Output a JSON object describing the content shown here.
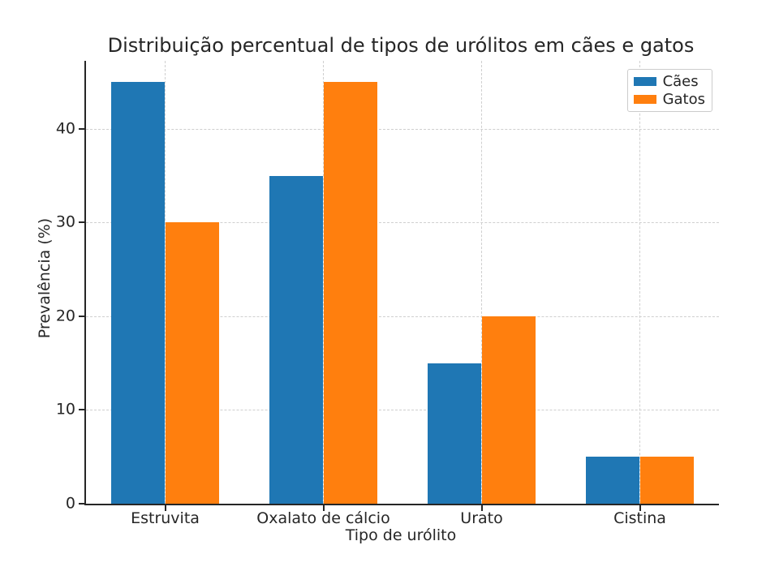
{
  "chart_data": {
    "type": "bar",
    "title": "Distribuição percentual de tipos de urólitos em cães e gatos",
    "xlabel": "Tipo de urólito",
    "ylabel": "Prevalência (%)",
    "categories": [
      "Estruvita",
      "Oxalato de cálcio",
      "Urato",
      "Cistina"
    ],
    "series": [
      {
        "name": "Cães",
        "color": "#1f77b4",
        "values": [
          45,
          35,
          15,
          5
        ]
      },
      {
        "name": "Gatos",
        "color": "#ff7f0e",
        "values": [
          30,
          45,
          20,
          5
        ]
      }
    ],
    "ylim": [
      0,
      47.25
    ],
    "yticks": [
      0,
      10,
      20,
      30,
      40
    ],
    "grid": true,
    "grid_style": "dashed",
    "grid_color": "#cfcfcf",
    "spine_color": "#262626",
    "text_color": "#262626",
    "background": "#ffffff",
    "legend_position": "upper right"
  }
}
